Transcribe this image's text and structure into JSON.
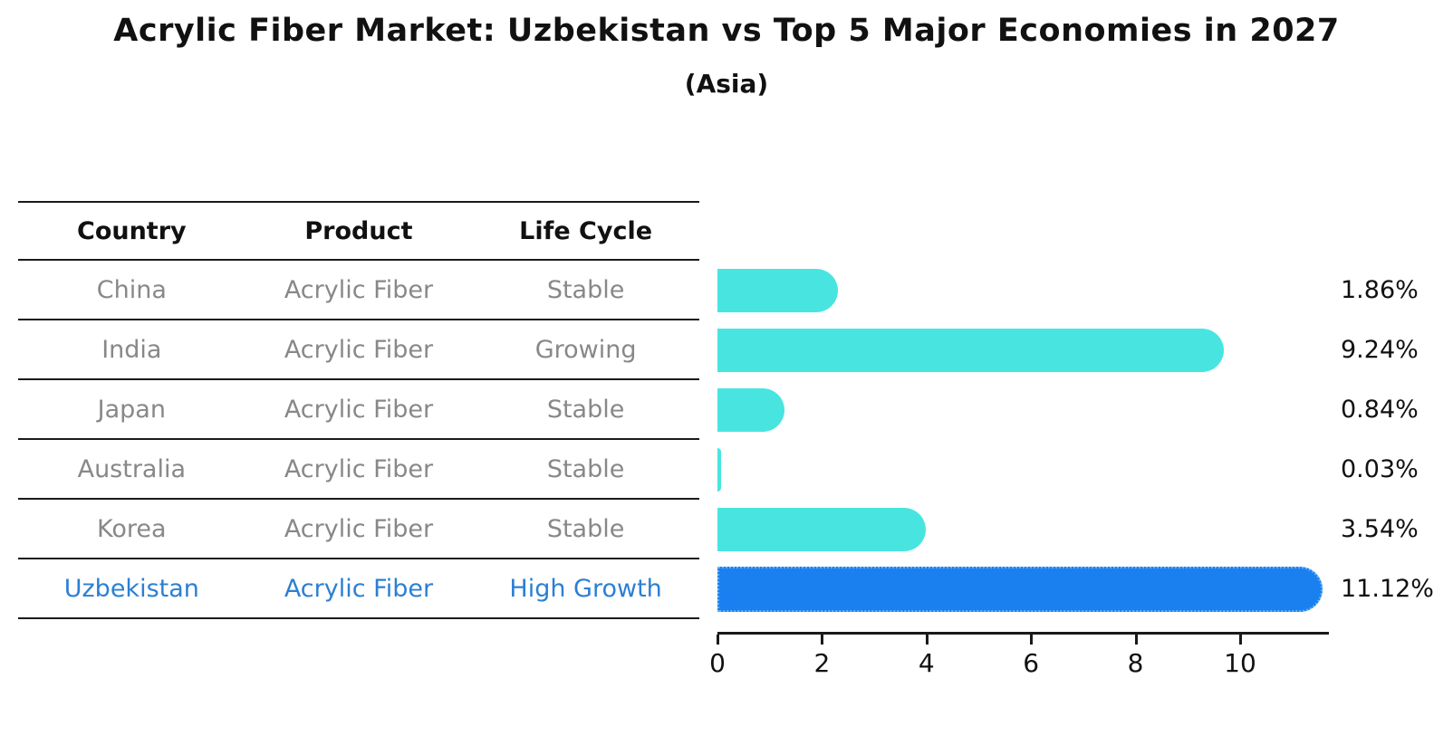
{
  "title": "Acrylic Fiber Market: Uzbekistan vs Top 5 Major Economies in 2027",
  "subtitle": "(Asia)",
  "table": {
    "headers": [
      "Country",
      "Product",
      "Life Cycle"
    ],
    "rows": [
      {
        "country": "China",
        "product": "Acrylic Fiber",
        "life_cycle": "Stable",
        "highlight": false
      },
      {
        "country": "India",
        "product": "Acrylic Fiber",
        "life_cycle": "Growing",
        "highlight": false
      },
      {
        "country": "Japan",
        "product": "Acrylic Fiber",
        "life_cycle": "Stable",
        "highlight": false
      },
      {
        "country": "Australia",
        "product": "Acrylic Fiber",
        "life_cycle": "Stable",
        "highlight": false
      },
      {
        "country": "Korea",
        "product": "Acrylic Fiber",
        "life_cycle": "Stable",
        "highlight": false
      },
      {
        "country": "Uzbekistan",
        "product": "Acrylic Fiber",
        "life_cycle": "High Growth",
        "highlight": true
      }
    ]
  },
  "chart_data": {
    "type": "bar",
    "orientation": "horizontal",
    "title": "Acrylic Fiber Market: Uzbekistan vs Top 5 Major Economies in 2027",
    "subtitle": "(Asia)",
    "categories": [
      "China",
      "India",
      "Japan",
      "Australia",
      "Korea",
      "Uzbekistan"
    ],
    "values": [
      1.86,
      9.24,
      0.84,
      0.03,
      3.54,
      11.12
    ],
    "value_labels": [
      "1.86%",
      "9.24%",
      "0.84%",
      "0.03%",
      "3.54%",
      "11.12%"
    ],
    "unit": "%",
    "x_ticks": [
      0,
      2,
      4,
      6,
      8,
      10
    ],
    "xlim": [
      0,
      11.68
    ],
    "grid": false,
    "legend": false,
    "highlight_index": 5,
    "bar_color": "#48e5e0",
    "highlight_color": "#1a80f0",
    "highlight_text_color": "#2b7fd4",
    "row_text_color": "#888888",
    "axis_color": "#1a1a1a"
  }
}
